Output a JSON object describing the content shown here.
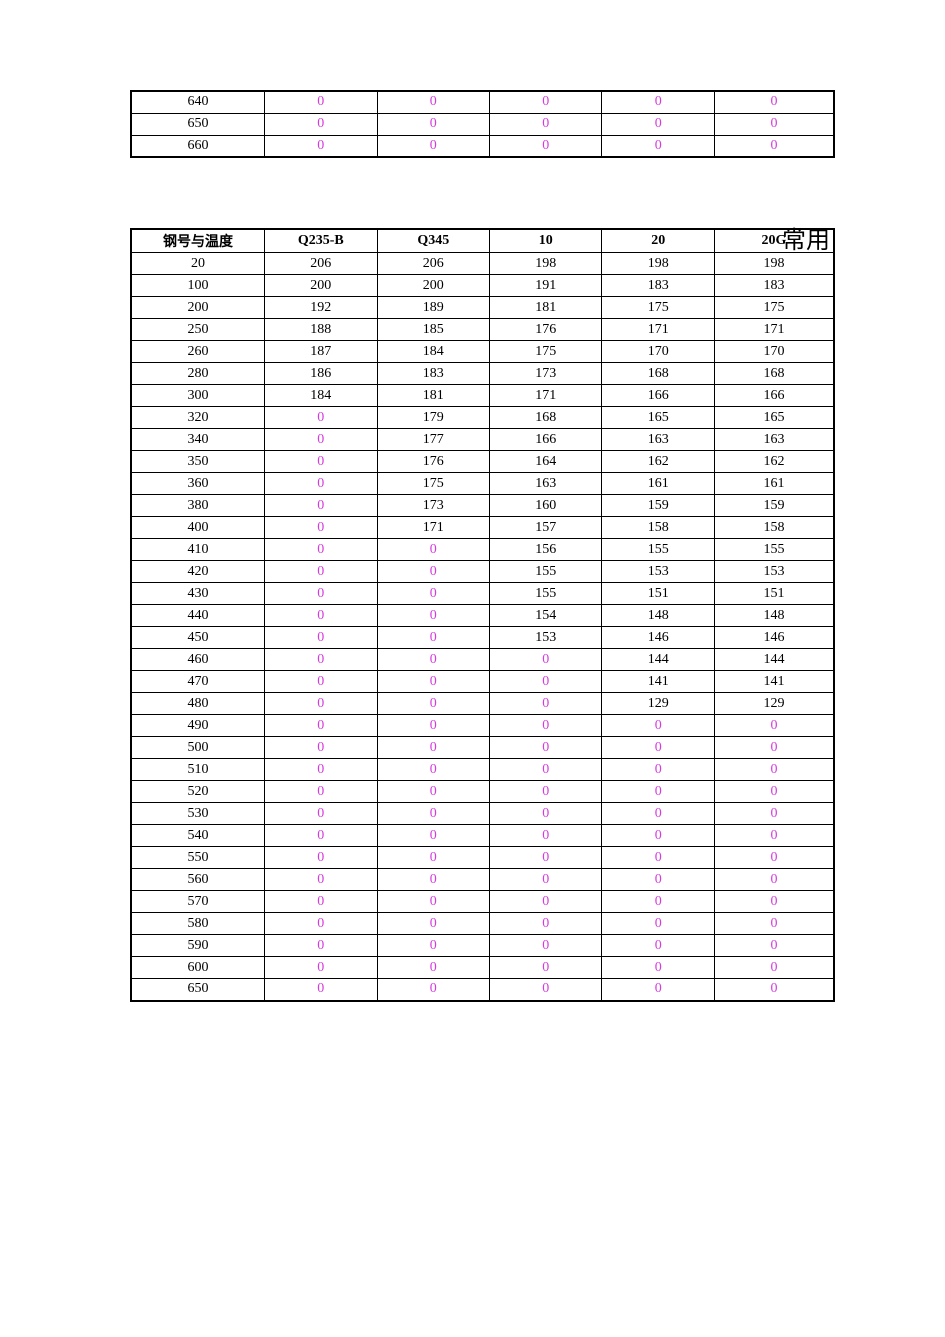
{
  "page": {
    "background_color": "#e8e8e8",
    "paper_color": "#ffffff"
  },
  "title_right": "常用",
  "zero_color": "#d63adf",
  "text_color": "#000000",
  "table_top": {
    "type": "table",
    "columns_count": 6,
    "rows": [
      [
        "640",
        "0",
        "0",
        "0",
        "0",
        "0"
      ],
      [
        "650",
        "0",
        "0",
        "0",
        "0",
        "0"
      ],
      [
        "660",
        "0",
        "0",
        "0",
        "0",
        "0"
      ]
    ]
  },
  "table_main": {
    "type": "table",
    "columns": [
      "钢号与温度",
      "Q235-B",
      "Q345",
      "10",
      "20",
      "20G"
    ],
    "rows": [
      [
        "20",
        "206",
        "206",
        "198",
        "198",
        "198"
      ],
      [
        "100",
        "200",
        "200",
        "191",
        "183",
        "183"
      ],
      [
        "200",
        "192",
        "189",
        "181",
        "175",
        "175"
      ],
      [
        "250",
        "188",
        "185",
        "176",
        "171",
        "171"
      ],
      [
        "260",
        "187",
        "184",
        "175",
        "170",
        "170"
      ],
      [
        "280",
        "186",
        "183",
        "173",
        "168",
        "168"
      ],
      [
        "300",
        "184",
        "181",
        "171",
        "166",
        "166"
      ],
      [
        "320",
        "0",
        "179",
        "168",
        "165",
        "165"
      ],
      [
        "340",
        "0",
        "177",
        "166",
        "163",
        "163"
      ],
      [
        "350",
        "0",
        "176",
        "164",
        "162",
        "162"
      ],
      [
        "360",
        "0",
        "175",
        "163",
        "161",
        "161"
      ],
      [
        "380",
        "0",
        "173",
        "160",
        "159",
        "159"
      ],
      [
        "400",
        "0",
        "171",
        "157",
        "158",
        "158"
      ],
      [
        "410",
        "0",
        "0",
        "156",
        "155",
        "155"
      ],
      [
        "420",
        "0",
        "0",
        "155",
        "153",
        "153"
      ],
      [
        "430",
        "0",
        "0",
        "155",
        "151",
        "151"
      ],
      [
        "440",
        "0",
        "0",
        "154",
        "148",
        "148"
      ],
      [
        "450",
        "0",
        "0",
        "153",
        "146",
        "146"
      ],
      [
        "460",
        "0",
        "0",
        "0",
        "144",
        "144"
      ],
      [
        "470",
        "0",
        "0",
        "0",
        "141",
        "141"
      ],
      [
        "480",
        "0",
        "0",
        "0",
        "129",
        "129"
      ],
      [
        "490",
        "0",
        "0",
        "0",
        "0",
        "0"
      ],
      [
        "500",
        "0",
        "0",
        "0",
        "0",
        "0"
      ],
      [
        "510",
        "0",
        "0",
        "0",
        "0",
        "0"
      ],
      [
        "520",
        "0",
        "0",
        "0",
        "0",
        "0"
      ],
      [
        "530",
        "0",
        "0",
        "0",
        "0",
        "0"
      ],
      [
        "540",
        "0",
        "0",
        "0",
        "0",
        "0"
      ],
      [
        "550",
        "0",
        "0",
        "0",
        "0",
        "0"
      ],
      [
        "560",
        "0",
        "0",
        "0",
        "0",
        "0"
      ],
      [
        "570",
        "0",
        "0",
        "0",
        "0",
        "0"
      ],
      [
        "580",
        "0",
        "0",
        "0",
        "0",
        "0"
      ],
      [
        "590",
        "0",
        "0",
        "0",
        "0",
        "0"
      ],
      [
        "600",
        "0",
        "0",
        "0",
        "0",
        "0"
      ],
      [
        "650",
        "0",
        "0",
        "0",
        "0",
        "0"
      ]
    ]
  }
}
